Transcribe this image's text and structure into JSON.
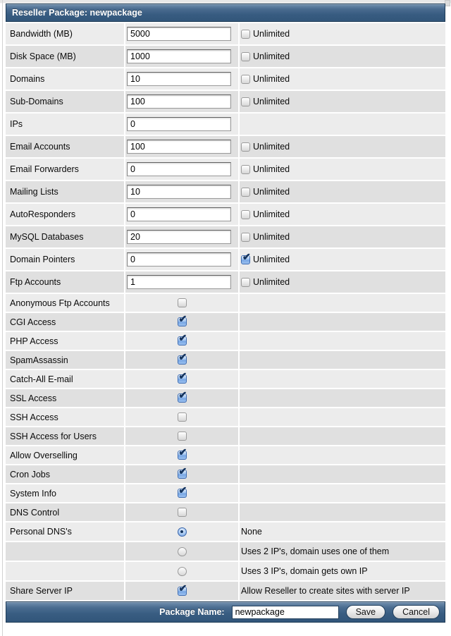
{
  "header": {
    "title": "Reseller Package: newpackage"
  },
  "labels": {
    "unlimited": "Unlimited"
  },
  "rows": [
    {
      "label": "Bandwidth (MB)",
      "type": "input",
      "value": "5000",
      "unlimited": true,
      "unlimited_checked": false
    },
    {
      "label": "Disk Space (MB)",
      "type": "input",
      "value": "1000",
      "unlimited": true,
      "unlimited_checked": false
    },
    {
      "label": "Domains",
      "type": "input",
      "value": "10",
      "unlimited": true,
      "unlimited_checked": false
    },
    {
      "label": "Sub-Domains",
      "type": "input",
      "value": "100",
      "unlimited": true,
      "unlimited_checked": false
    },
    {
      "label": "IPs",
      "type": "input",
      "value": "0",
      "unlimited": false,
      "unlimited_checked": false
    },
    {
      "label": "Email Accounts",
      "type": "input",
      "value": "100",
      "unlimited": true,
      "unlimited_checked": false
    },
    {
      "label": "Email Forwarders",
      "type": "input",
      "value": "0",
      "unlimited": true,
      "unlimited_checked": false
    },
    {
      "label": "Mailing Lists",
      "type": "input",
      "value": "10",
      "unlimited": true,
      "unlimited_checked": false
    },
    {
      "label": "AutoResponders",
      "type": "input",
      "value": "0",
      "unlimited": true,
      "unlimited_checked": false
    },
    {
      "label": "MySQL Databases",
      "type": "input",
      "value": "20",
      "unlimited": true,
      "unlimited_checked": false
    },
    {
      "label": "Domain Pointers",
      "type": "input",
      "value": "0",
      "unlimited": true,
      "unlimited_checked": true
    },
    {
      "label": "Ftp Accounts",
      "type": "input",
      "value": "1",
      "unlimited": true,
      "unlimited_checked": false
    },
    {
      "label": "Anonymous Ftp Accounts",
      "type": "checkbox",
      "checked": false
    },
    {
      "label": "CGI Access",
      "type": "checkbox",
      "checked": true
    },
    {
      "label": "PHP Access",
      "type": "checkbox",
      "checked": true
    },
    {
      "label": "SpamAssassin",
      "type": "checkbox",
      "checked": true
    },
    {
      "label": "Catch-All E-mail",
      "type": "checkbox",
      "checked": true
    },
    {
      "label": "SSL Access",
      "type": "checkbox",
      "checked": true
    },
    {
      "label": "SSH Access",
      "type": "checkbox",
      "checked": false
    },
    {
      "label": "SSH Access for Users",
      "type": "checkbox",
      "checked": false
    },
    {
      "label": "Allow Overselling",
      "type": "checkbox",
      "checked": true
    },
    {
      "label": "Cron Jobs",
      "type": "checkbox",
      "checked": true
    },
    {
      "label": "System Info",
      "type": "checkbox",
      "checked": true
    },
    {
      "label": "DNS Control",
      "type": "checkbox",
      "checked": false
    },
    {
      "label": "Personal DNS's",
      "type": "radio",
      "checked": true,
      "note": "None"
    },
    {
      "label": "",
      "type": "radio",
      "checked": false,
      "note": "Uses 2 IP's, domain uses one of them"
    },
    {
      "label": "",
      "type": "radio",
      "checked": false,
      "note": "Uses 3 IP's, domain gets own IP"
    },
    {
      "label": "Share Server IP",
      "type": "checkbox_note",
      "checked": true,
      "note": "Allow Reseller to create sites with server IP"
    }
  ],
  "footer": {
    "package_name_label": "Package Name:",
    "package_name_value": "newpackage",
    "save_label": "Save",
    "cancel_label": "Cancel"
  },
  "colors": {
    "header_top": "#718fae",
    "header_bottom": "#32567a",
    "row_light": "#ececec",
    "row_dark": "#e0e0e0",
    "checked_blue": "#78a6e4",
    "check_mark_navy": "#16355f"
  }
}
